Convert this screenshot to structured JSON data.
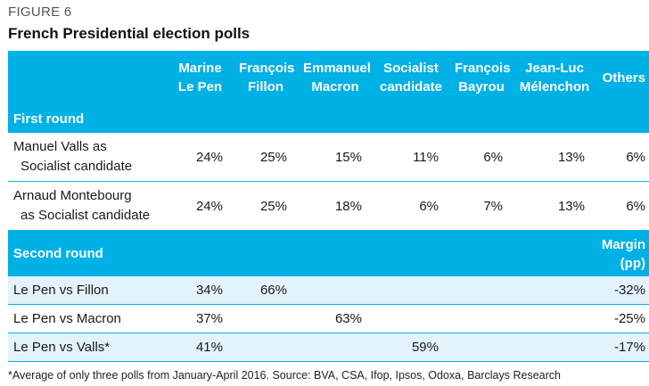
{
  "figure_label": "FIGURE 6",
  "title": "French Presidential election polls",
  "columns": [
    {
      "line1": "Marine",
      "line2": "Le Pen"
    },
    {
      "line1": "François",
      "line2": "Fillon"
    },
    {
      "line1": "Emmanuel",
      "line2": "Macron"
    },
    {
      "line1": "Socialist",
      "line2": "candidate"
    },
    {
      "line1": "François",
      "line2": "Bayrou"
    },
    {
      "line1": "Jean-Luc",
      "line2": "Mélenchon"
    },
    {
      "line1": "Others",
      "line2": ""
    }
  ],
  "first_round": {
    "label": "First round",
    "rows": [
      {
        "line1": "Manuel Valls as",
        "line2": "Socialist candidate",
        "values": [
          "24%",
          "25%",
          "15%",
          "11%",
          "6%",
          "13%",
          "6%"
        ]
      },
      {
        "line1": "Arnaud Montebourg",
        "line2": "as Socialist candidate",
        "values": [
          "24%",
          "25%",
          "18%",
          "6%",
          "7%",
          "13%",
          "6%"
        ]
      }
    ]
  },
  "second_round": {
    "label": "Second round",
    "margin_line1": "Margin",
    "margin_line2": "(pp)",
    "rows": [
      {
        "label": "Le Pen vs Fillon",
        "values": [
          "34%",
          "66%",
          "",
          "",
          "",
          "",
          "-32%"
        ]
      },
      {
        "label": "Le Pen vs Macron",
        "values": [
          "37%",
          "",
          "63%",
          "",
          "",
          "",
          "-25%"
        ]
      },
      {
        "label": "Le Pen vs Valls*",
        "values": [
          "41%",
          "",
          "",
          "59%",
          "",
          "",
          "-17%"
        ]
      }
    ]
  },
  "footnote": "*Average of only three polls from January-April 2016. Source: BVA, CSA, Ifop, Ipsos, Odoxa, Barclays Research"
}
